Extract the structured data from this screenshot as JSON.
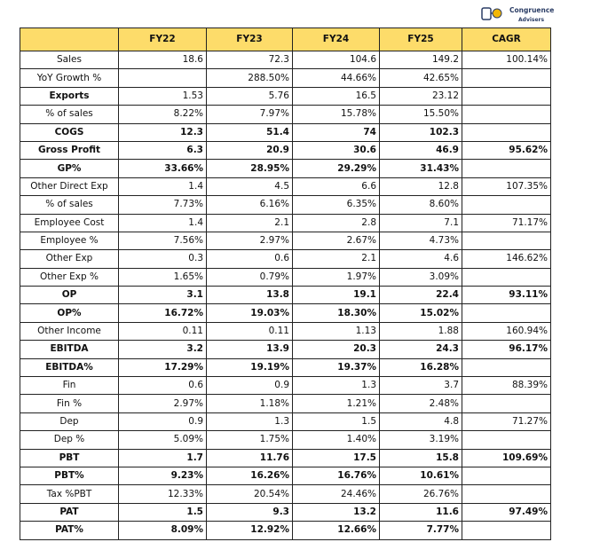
{
  "logo": {
    "line1": "Congruence",
    "line2": "Advisers"
  },
  "table": {
    "headers": [
      "FY22",
      "FY23",
      "FY24",
      "FY25",
      "CAGR"
    ],
    "rows": [
      [
        "Sales",
        "18.6",
        "72.3",
        "104.6",
        "149.2",
        "100.14%"
      ],
      [
        "YoY Growth %",
        null,
        "288.50%",
        "44.66%",
        "42.65%",
        null
      ],
      [
        "Exports",
        "1.53",
        "5.76",
        "16.5",
        "23.12",
        null
      ],
      [
        "% of sales",
        "8.22%",
        "7.97%",
        "15.78%",
        "15.50%",
        null
      ],
      [
        "COGS",
        "12.3",
        "51.4",
        "74",
        "102.3",
        null
      ],
      [
        "Gross Profit",
        "6.3",
        "20.9",
        "30.6",
        "46.9",
        "95.62%"
      ],
      [
        "GP%",
        "33.66%",
        "28.95%",
        "29.29%",
        "31.43%",
        null
      ],
      [
        "Other Direct Exp",
        "1.4",
        "4.5",
        "6.6",
        "12.8",
        "107.35%"
      ],
      [
        "% of sales",
        "7.73%",
        "6.16%",
        "6.35%",
        "8.60%",
        null
      ],
      [
        "Employee Cost",
        "1.4",
        "2.1",
        "2.8",
        "7.1",
        "71.17%"
      ],
      [
        "Employee %",
        "7.56%",
        "2.97%",
        "2.67%",
        "4.73%",
        null
      ],
      [
        "Other Exp",
        "0.3",
        "0.6",
        "2.1",
        "4.6",
        "146.62%"
      ],
      [
        "Other Exp %",
        "1.65%",
        "0.79%",
        "1.97%",
        "3.09%",
        null
      ],
      [
        "OP",
        "3.1",
        "13.8",
        "19.1",
        "22.4",
        "93.11%"
      ],
      [
        "OP%",
        "16.72%",
        "19.03%",
        "18.30%",
        "15.02%",
        null
      ],
      [
        "Other Income",
        "0.11",
        "0.11",
        "1.13",
        "1.88",
        "160.94%"
      ],
      [
        "EBITDA",
        "3.2",
        "13.9",
        "20.3",
        "24.3",
        "96.17%"
      ],
      [
        "EBITDA%",
        "17.29%",
        "19.19%",
        "19.37%",
        "16.28%",
        null
      ],
      [
        "Fin",
        "0.6",
        "0.9",
        "1.3",
        "3.7",
        "88.39%"
      ],
      [
        "Fin %",
        "2.97%",
        "1.18%",
        "1.21%",
        "2.48%",
        null
      ],
      [
        "Dep",
        "0.9",
        "1.3",
        "1.5",
        "4.8",
        "71.27%"
      ],
      [
        "Dep %",
        "5.09%",
        "1.75%",
        "1.40%",
        "3.19%",
        null
      ],
      [
        "PBT",
        "1.7",
        "11.76",
        "17.5",
        "15.8",
        "109.69%"
      ],
      [
        "PBT%",
        "9.23%",
        "16.26%",
        "16.76%",
        "10.61%",
        null
      ],
      [
        "Tax %PBT",
        "12.33%",
        "20.54%",
        "24.46%",
        "26.76%",
        null
      ],
      [
        "PAT",
        "1.5",
        "9.3",
        "13.2",
        "11.6",
        "97.49%"
      ],
      [
        "PAT%",
        "8.09%",
        "12.92%",
        "12.66%",
        "7.77%",
        null
      ]
    ]
  }
}
